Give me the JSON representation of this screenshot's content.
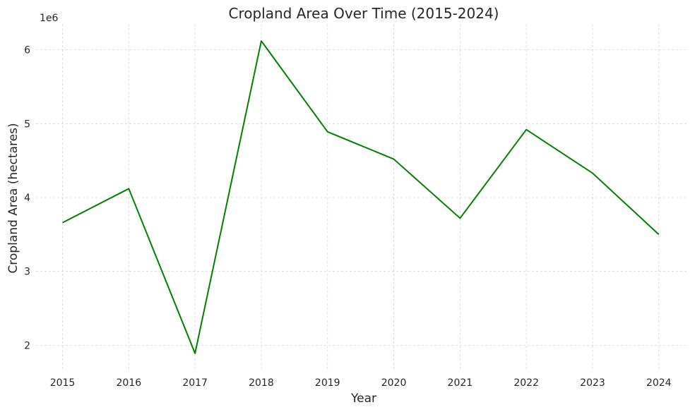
{
  "chart_data": {
    "type": "line",
    "title": "Cropland Area Over Time (2015-2024)",
    "xlabel": "Year",
    "ylabel": "Cropland Area (hectares)",
    "offset_label": "1e6",
    "x": [
      2015,
      2016,
      2017,
      2018,
      2019,
      2020,
      2021,
      2022,
      2023,
      2024
    ],
    "xticks": [
      "2015",
      "2016",
      "2017",
      "2018",
      "2019",
      "2020",
      "2021",
      "2022",
      "2023",
      "2024"
    ],
    "yticks": [
      2,
      3,
      4,
      5,
      6
    ],
    "ylim": [
      1.65,
      6.35
    ],
    "xlim": [
      2014.6,
      2024.45
    ],
    "grid": true,
    "series": [
      {
        "color": "#008000",
        "values": [
          3.66,
          4.12,
          1.89,
          6.12,
          4.89,
          4.52,
          3.72,
          4.92,
          4.33,
          3.5
        ]
      }
    ]
  }
}
